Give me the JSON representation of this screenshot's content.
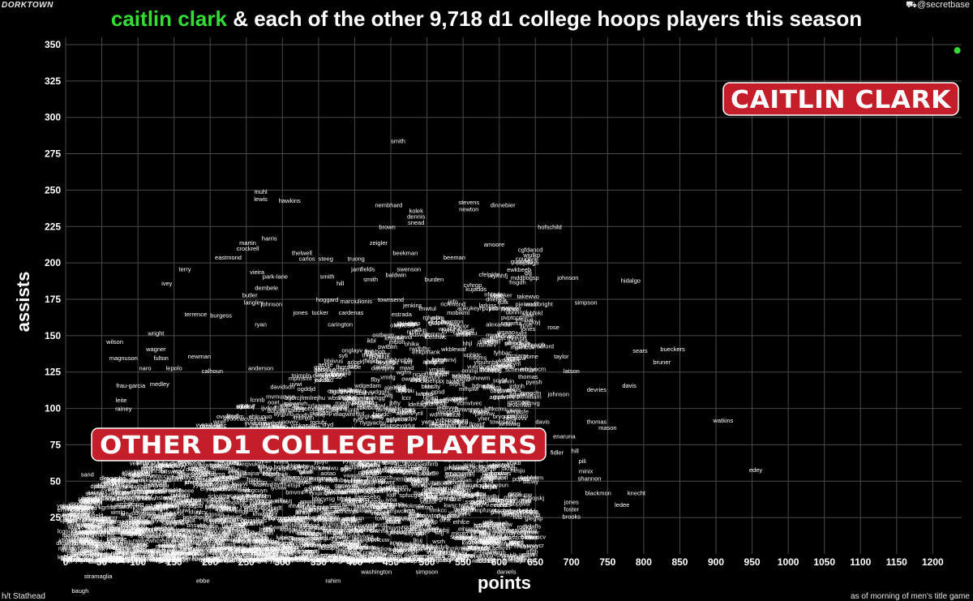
{
  "header": {
    "brand": "DORKTOWN",
    "handle": "@secretbase",
    "title_highlight": "caitlin clark",
    "title_rest": " & each of the other 9,718 d1 college hoops players this season"
  },
  "footer": {
    "left": "h/t Stathead",
    "right": "as of morning of men's title game"
  },
  "colors": {
    "background": "#000000",
    "highlight": "#33dd33",
    "callout_bg": "#c41e2a",
    "grid": "#4a4a4a"
  },
  "callouts": {
    "clark": "CAITLIN CLARK",
    "others": "OTHER D1 COLLEGE PLAYERS"
  },
  "chart_data": {
    "type": "scatter",
    "xlabel": "points",
    "ylabel": "assists",
    "xlim": [
      0,
      1240
    ],
    "ylim": [
      0,
      355
    ],
    "x_ticks": [
      0,
      50,
      100,
      150,
      200,
      250,
      300,
      350,
      400,
      450,
      500,
      550,
      600,
      650,
      700,
      750,
      800,
      850,
      900,
      950,
      1000,
      1050,
      1100,
      1150,
      1200
    ],
    "y_ticks": [
      25,
      50,
      75,
      100,
      125,
      150,
      175,
      200,
      225,
      250,
      275,
      300,
      325,
      350
    ],
    "grid": true,
    "highlight_point": {
      "name": "caitlin clark",
      "x": 1234,
      "y": 346
    },
    "labeled_points": [
      {
        "label": "smith",
        "x": 460,
        "y": 284
      },
      {
        "label": "muhl",
        "x": 270,
        "y": 249
      },
      {
        "label": "lewis",
        "x": 270,
        "y": 244
      },
      {
        "label": "hawkins",
        "x": 310,
        "y": 243
      },
      {
        "label": "nembhard",
        "x": 447,
        "y": 240
      },
      {
        "label": "stevens",
        "x": 558,
        "y": 242
      },
      {
        "label": "newton",
        "x": 558,
        "y": 237
      },
      {
        "label": "dinnebier",
        "x": 605,
        "y": 240
      },
      {
        "label": "kolek",
        "x": 485,
        "y": 236
      },
      {
        "label": "dennis",
        "x": 485,
        "y": 232
      },
      {
        "label": "snead",
        "x": 485,
        "y": 228
      },
      {
        "label": "brown",
        "x": 445,
        "y": 225
      },
      {
        "label": "hofschild",
        "x": 670,
        "y": 225
      },
      {
        "label": "harris",
        "x": 282,
        "y": 217
      },
      {
        "label": "martin",
        "x": 252,
        "y": 214
      },
      {
        "label": "crockrell",
        "x": 252,
        "y": 210
      },
      {
        "label": "zeigler",
        "x": 433,
        "y": 214
      },
      {
        "label": "amoore",
        "x": 593,
        "y": 213
      },
      {
        "label": "thelwell",
        "x": 327,
        "y": 207
      },
      {
        "label": "carlos",
        "x": 334,
        "y": 203
      },
      {
        "label": "steeg",
        "x": 360,
        "y": 203
      },
      {
        "label": "truong",
        "x": 402,
        "y": 203
      },
      {
        "label": "beekman",
        "x": 470,
        "y": 207
      },
      {
        "label": "beeman",
        "x": 538,
        "y": 204
      },
      {
        "label": "eastmond",
        "x": 225,
        "y": 204
      },
      {
        "label": "terry",
        "x": 165,
        "y": 196
      },
      {
        "label": "vieira",
        "x": 265,
        "y": 194
      },
      {
        "label": "fields",
        "x": 418,
        "y": 196
      },
      {
        "label": "swenson",
        "x": 475,
        "y": 196
      },
      {
        "label": "park-lane",
        "x": 290,
        "y": 191
      },
      {
        "label": "smith",
        "x": 362,
        "y": 191
      },
      {
        "label": "jam",
        "x": 402,
        "y": 196
      },
      {
        "label": "baldwin",
        "x": 457,
        "y": 192
      },
      {
        "label": "burden",
        "x": 510,
        "y": 189
      },
      {
        "label": "johnson",
        "x": 695,
        "y": 190
      },
      {
        "label": "hidalgo",
        "x": 782,
        "y": 188
      },
      {
        "label": "ivey",
        "x": 140,
        "y": 186
      },
      {
        "label": "hill",
        "x": 380,
        "y": 186
      },
      {
        "label": "smith",
        "x": 422,
        "y": 189
      },
      {
        "label": "dembele",
        "x": 278,
        "y": 183
      },
      {
        "label": "butler",
        "x": 255,
        "y": 178
      },
      {
        "label": "booker",
        "x": 605,
        "y": 178
      },
      {
        "label": "hoggard",
        "x": 362,
        "y": 175
      },
      {
        "label": "langley",
        "x": 260,
        "y": 173
      },
      {
        "label": "johnson",
        "x": 285,
        "y": 172
      },
      {
        "label": "marciulionis",
        "x": 402,
        "y": 174
      },
      {
        "label": "townsend",
        "x": 450,
        "y": 175
      },
      {
        "label": "jenkins",
        "x": 480,
        "y": 171
      },
      {
        "label": "richmond",
        "x": 536,
        "y": 172
      },
      {
        "label": "larkins",
        "x": 584,
        "y": 171
      },
      {
        "label": "reeler",
        "x": 616,
        "y": 169
      },
      {
        "label": "woolbright",
        "x": 655,
        "y": 172
      },
      {
        "label": "simpson",
        "x": 720,
        "y": 173
      },
      {
        "label": "terrence",
        "x": 180,
        "y": 165
      },
      {
        "label": "burgess",
        "x": 215,
        "y": 164
      },
      {
        "label": "jones",
        "x": 325,
        "y": 166
      },
      {
        "label": "tucker",
        "x": 352,
        "y": 166
      },
      {
        "label": "cardenas",
        "x": 395,
        "y": 166
      },
      {
        "label": "estrada",
        "x": 465,
        "y": 165
      },
      {
        "label": "buie",
        "x": 640,
        "y": 164
      },
      {
        "label": "thornton",
        "x": 535,
        "y": 160
      },
      {
        "label": "alexander",
        "x": 600,
        "y": 158
      },
      {
        "label": "jones",
        "x": 640,
        "y": 155
      },
      {
        "label": "rose",
        "x": 675,
        "y": 156
      },
      {
        "label": "carington",
        "x": 380,
        "y": 158
      },
      {
        "label": "ryan",
        "x": 270,
        "y": 158
      },
      {
        "label": "wright",
        "x": 125,
        "y": 152
      },
      {
        "label": "smith",
        "x": 550,
        "y": 151
      },
      {
        "label": "wilson",
        "x": 68,
        "y": 146
      },
      {
        "label": "wells",
        "x": 585,
        "y": 148
      },
      {
        "label": "thomas",
        "x": 625,
        "y": 148
      },
      {
        "label": "wagner",
        "x": 125,
        "y": 141
      },
      {
        "label": "bradford",
        "x": 660,
        "y": 143
      },
      {
        "label": "sears",
        "x": 795,
        "y": 140
      },
      {
        "label": "bueckers",
        "x": 840,
        "y": 141
      },
      {
        "label": "magnuson",
        "x": 80,
        "y": 135
      },
      {
        "label": "fulton",
        "x": 132,
        "y": 135
      },
      {
        "label": "newman",
        "x": 185,
        "y": 136
      },
      {
        "label": "taylor",
        "x": 686,
        "y": 136
      },
      {
        "label": "bruner",
        "x": 825,
        "y": 132
      },
      {
        "label": "naro",
        "x": 110,
        "y": 128
      },
      {
        "label": "lepolo",
        "x": 150,
        "y": 128
      },
      {
        "label": "calhoun",
        "x": 203,
        "y": 126
      },
      {
        "label": "anderson",
        "x": 270,
        "y": 128
      },
      {
        "label": "ransom",
        "x": 440,
        "y": 129
      },
      {
        "label": "latson",
        "x": 700,
        "y": 126
      },
      {
        "label": "scheierman",
        "x": 630,
        "y": 127
      },
      {
        "label": "thomas",
        "x": 640,
        "y": 122
      },
      {
        "label": "calvin",
        "x": 610,
        "y": 119
      },
      {
        "label": "davis",
        "x": 780,
        "y": 116
      },
      {
        "label": "frau-garcia",
        "x": 90,
        "y": 116
      },
      {
        "label": "medley",
        "x": 130,
        "y": 117
      },
      {
        "label": "davidson",
        "x": 300,
        "y": 115
      },
      {
        "label": "devries",
        "x": 735,
        "y": 113
      },
      {
        "label": "edwards",
        "x": 630,
        "y": 110
      },
      {
        "label": "johnson",
        "x": 682,
        "y": 110
      },
      {
        "label": "leite",
        "x": 77,
        "y": 106
      },
      {
        "label": "rainey",
        "x": 80,
        "y": 100
      },
      {
        "label": "watkins",
        "x": 910,
        "y": 92
      },
      {
        "label": "townsend",
        "x": 605,
        "y": 91
      },
      {
        "label": "davis",
        "x": 660,
        "y": 91
      },
      {
        "label": "thomas",
        "x": 735,
        "y": 91
      },
      {
        "label": "mason",
        "x": 750,
        "y": 87
      },
      {
        "label": "hartsfield",
        "x": 60,
        "y": 83
      },
      {
        "label": "dorsey",
        "x": 105,
        "y": 83
      },
      {
        "label": "enaruna",
        "x": 690,
        "y": 81
      },
      {
        "label": "mcguire",
        "x": 100,
        "y": 69
      },
      {
        "label": "hill",
        "x": 705,
        "y": 71
      },
      {
        "label": "fidler",
        "x": 680,
        "y": 70
      },
      {
        "label": "pili",
        "x": 715,
        "y": 64
      },
      {
        "label": "edey",
        "x": 955,
        "y": 58
      },
      {
        "label": "minix",
        "x": 720,
        "y": 57
      },
      {
        "label": "shannon",
        "x": 725,
        "y": 52
      },
      {
        "label": "sand",
        "x": 30,
        "y": 55
      },
      {
        "label": "blackmon",
        "x": 737,
        "y": 42
      },
      {
        "label": "knecht",
        "x": 790,
        "y": 42
      },
      {
        "label": "koilia",
        "x": 25,
        "y": 33
      },
      {
        "label": "benard",
        "x": 75,
        "y": 33
      },
      {
        "label": "ledee",
        "x": 770,
        "y": 34
      },
      {
        "label": "meadows",
        "x": 140,
        "y": 33
      },
      {
        "label": "jones",
        "x": 700,
        "y": 36
      },
      {
        "label": "foster",
        "x": 700,
        "y": 31
      },
      {
        "label": "brooks",
        "x": 700,
        "y": 26
      },
      {
        "label": "rooks",
        "x": 635,
        "y": 19
      },
      {
        "label": "morton",
        "x": 25,
        "y": 15
      },
      {
        "label": "hinson",
        "x": 600,
        "y": 11
      },
      {
        "label": "odam",
        "x": 40,
        "y": 6
      },
      {
        "label": "wade",
        "x": 35,
        "y": 2
      },
      {
        "label": "bacote",
        "x": 45,
        "y": -5
      },
      {
        "label": "stramaglia",
        "x": 45,
        "y": -15
      },
      {
        "label": "simpson",
        "x": 500,
        "y": -12
      },
      {
        "label": "daniels",
        "x": 610,
        "y": -12
      },
      {
        "label": "washington",
        "x": 430,
        "y": -12
      },
      {
        "label": "rahim",
        "x": 370,
        "y": -18
      },
      {
        "label": "ebbe",
        "x": 190,
        "y": -18
      },
      {
        "label": "baugh",
        "x": 20,
        "y": -25
      }
    ]
  }
}
